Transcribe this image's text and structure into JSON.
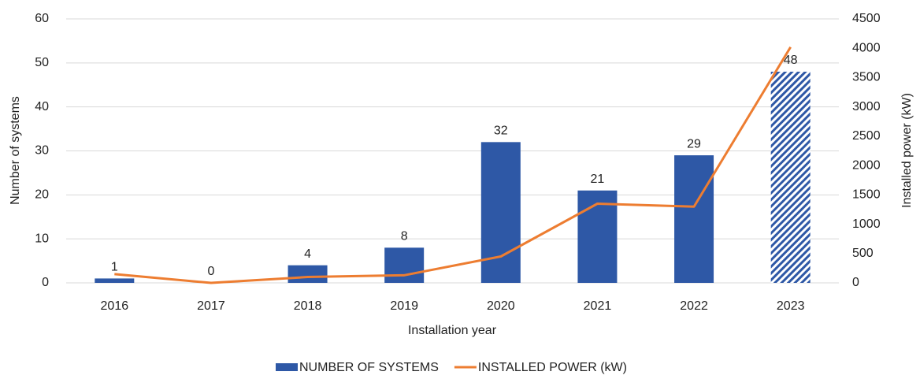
{
  "chart_data": {
    "type": "combo",
    "xlabel": "Installation year",
    "ylabel": "Number of systems",
    "y2label": "Installed power (kW)",
    "categories": [
      "2016",
      "2017",
      "2018",
      "2019",
      "2020",
      "2021",
      "2022",
      "2023"
    ],
    "series": [
      {
        "name": "NUMBER OF SYSTEMS",
        "type": "bar",
        "color": "#2e58a6",
        "values": [
          1,
          0,
          4,
          8,
          32,
          21,
          29,
          48
        ],
        "hatched": [
          false,
          false,
          false,
          false,
          false,
          false,
          false,
          true
        ]
      },
      {
        "name": "INSTALLED POWER (kW)",
        "type": "line",
        "axis": "y2",
        "color": "#ed7d31",
        "values": [
          150,
          0,
          100,
          130,
          450,
          1350,
          1300,
          4020
        ]
      }
    ],
    "ylim": [
      0,
      60
    ],
    "yticks": [
      0,
      10,
      20,
      30,
      40,
      50,
      60
    ],
    "y2lim": [
      0,
      4500
    ],
    "y2ticks": [
      0,
      500,
      1000,
      1500,
      2000,
      2500,
      3000,
      3500,
      4000,
      4500
    ],
    "grid": true,
    "legend": "bottom"
  }
}
